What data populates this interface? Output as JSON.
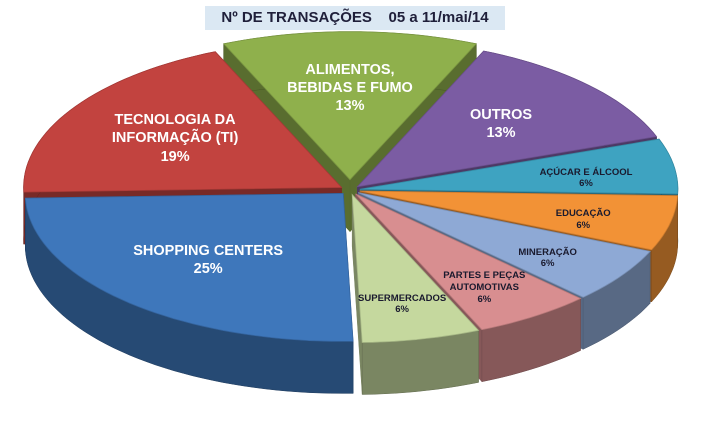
{
  "chart_data": {
    "type": "pie",
    "title": "Nº DE TRANSAÇÕES    05 a 11/mai/14",
    "categories": [
      "ALIMENTOS, BEBIDAS E FUMO",
      "OUTROS",
      "AÇÚCAR E ÁLCOOL",
      "EDUCAÇÃO",
      "MINERAÇÃO",
      "PARTES E PEÇAS AUTOMOTIVAS",
      "SUPERMERCADOS",
      "SHOPPING CENTERS",
      "TECNOLOGIA DA INFORMAÇÃO (TI)"
    ],
    "values": [
      13,
      13,
      6,
      6,
      6,
      6,
      6,
      25,
      19
    ],
    "value_labels": [
      "13%",
      "13%",
      "6%",
      "6%",
      "6%",
      "6%",
      "6%",
      "25%",
      "19%"
    ],
    "colors": [
      "#8fb04c",
      "#7b5ca3",
      "#3ea3c1",
      "#f29236",
      "#8ea9d5",
      "#d88e90",
      "#c5d89e",
      "#3e77bb",
      "#c2433f"
    ]
  }
}
